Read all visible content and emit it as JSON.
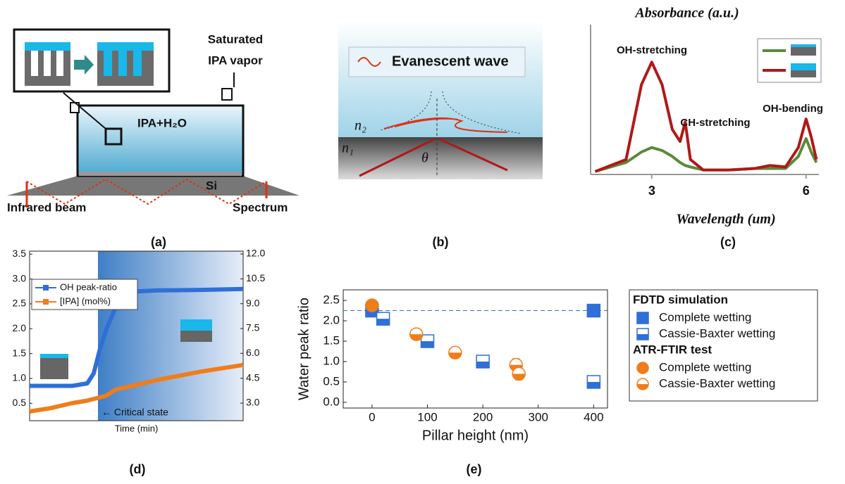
{
  "panel_a": {
    "vapor_line1": "Saturated",
    "vapor_line2": "IPA vapor",
    "liquid": "IPA+H₂O",
    "prism": "Si",
    "beam_in": "Infrared beam",
    "beam_out": "Spectrum",
    "caption": "(a)"
  },
  "panel_b": {
    "wave": "Evanescent wave",
    "n2": "n₂",
    "n1": "n₁",
    "angle": "θ",
    "caption": "(b)"
  },
  "chart_data": [
    {
      "type": "line",
      "caption": "(c)",
      "ylabel": "Absorbance (a.u.)",
      "xlabel": "Wavelength (um)",
      "annotations": [
        "OH-stretching",
        "CH-stretching",
        "OH-bending"
      ],
      "x": [
        1.9,
        2.5,
        2.8,
        3.0,
        3.2,
        3.4,
        3.55,
        3.65,
        3.75,
        4.0,
        4.5,
        5.0,
        5.3,
        5.6,
        5.85,
        6.0,
        6.1,
        6.2
      ],
      "xlim": [
        1.81,
        6.25
      ],
      "ylim": [
        0,
        1
      ],
      "xticks": [
        3,
        6
      ],
      "series": [
        {
          "color": "#5b8a3a",
          "values": [
            0.02,
            0.08,
            0.15,
            0.18,
            0.16,
            0.12,
            0.08,
            0.06,
            0.05,
            0.03,
            0.03,
            0.04,
            0.04,
            0.04,
            0.12,
            0.24,
            0.15,
            0.08
          ]
        },
        {
          "color": "#b01818",
          "values": [
            0.02,
            0.1,
            0.6,
            0.75,
            0.6,
            0.3,
            0.22,
            0.35,
            0.1,
            0.03,
            0.03,
            0.04,
            0.06,
            0.05,
            0.18,
            0.37,
            0.25,
            0.1
          ]
        }
      ]
    },
    {
      "type": "line",
      "caption": "(d)",
      "xlabel": "Time (min)",
      "annotation": "← Critical state",
      "x": [
        0,
        10,
        20,
        27,
        30,
        33,
        36,
        40,
        45,
        50,
        60,
        80,
        100
      ],
      "xlim": [
        0,
        100
      ],
      "ylim": [
        0.15,
        3.56
      ],
      "y2lim": [
        1.94,
        12.17
      ],
      "yticks": [
        0.5,
        {
          "value": 1,
          "label": "1.0"
        },
        1.5,
        {
          "value": 2,
          "label": "2.0"
        },
        2.5,
        {
          "value": 3,
          "label": "3.0"
        },
        3.5
      ],
      "y2ticks": [
        {
          "value": 3,
          "label": "3.0"
        },
        4.5,
        {
          "value": 6,
          "label": "6.0"
        },
        7.5,
        {
          "value": 9,
          "label": "9.0"
        },
        10.5,
        {
          "value": 12,
          "label": "12.0"
        }
      ],
      "series": [
        {
          "name": "OH peak-ratio",
          "color": "#2f6fd6",
          "values": [
            0.85,
            0.85,
            0.85,
            0.9,
            1.1,
            1.6,
            2.0,
            2.4,
            2.65,
            2.75,
            2.77,
            2.78,
            2.8
          ]
        },
        {
          "name": "[IPA] (mol%)",
          "color": "#f07d1a",
          "axis": "y2",
          "values": [
            2.5,
            2.7,
            3.0,
            3.15,
            3.25,
            3.35,
            3.45,
            3.8,
            3.95,
            4.1,
            4.4,
            4.9,
            5.3
          ]
        }
      ]
    },
    {
      "type": "scatter",
      "caption": "(e)",
      "xlabel": "Pillar height (nm)",
      "ylabel": "Water peak ratio",
      "xlim": [
        -52,
        425
      ],
      "ylim": [
        -0.14,
        2.76
      ],
      "hline": 2.25,
      "xticks": [
        0,
        100,
        200,
        300,
        400
      ],
      "yticks": [
        {
          "value": 0,
          "label": "0.0"
        },
        0.5,
        {
          "value": 1,
          "label": "1.0"
        },
        1.5,
        {
          "value": 2,
          "label": "2.0"
        },
        2.5
      ],
      "groups": [
        {
          "title": "FDTD simulation",
          "series": [
            {
              "name": "Complete wetting",
              "color": "#2f6fd6",
              "marker": "square",
              "fill": "full",
              "x": [
                0,
                400
              ],
              "values": [
                2.25,
                2.25
              ]
            },
            {
              "name": "Cassie-Baxter wetting",
              "color": "#2f6fd6",
              "marker": "square",
              "fill": "half",
              "x": [
                20,
                100,
                200,
                400
              ],
              "values": [
                2.05,
                1.5,
                1.0,
                0.5
              ]
            }
          ]
        },
        {
          "title": "ATR-FTIR test",
          "series": [
            {
              "name": "Complete wetting",
              "color": "#f07d1a",
              "marker": "circle",
              "fill": "full",
              "x": [
                0
              ],
              "values": [
                2.38
              ],
              "errors": [
                0.12
              ]
            },
            {
              "name": "Cassie-Baxter wetting",
              "color": "#f07d1a",
              "marker": "circle",
              "fill": "half",
              "x": [
                80,
                150,
                260,
                265
              ],
              "values": [
                1.67,
                1.22,
                0.92,
                0.7
              ],
              "errors": [
                0.06,
                0.1,
                0.15,
                0.15
              ]
            }
          ]
        }
      ]
    }
  ]
}
